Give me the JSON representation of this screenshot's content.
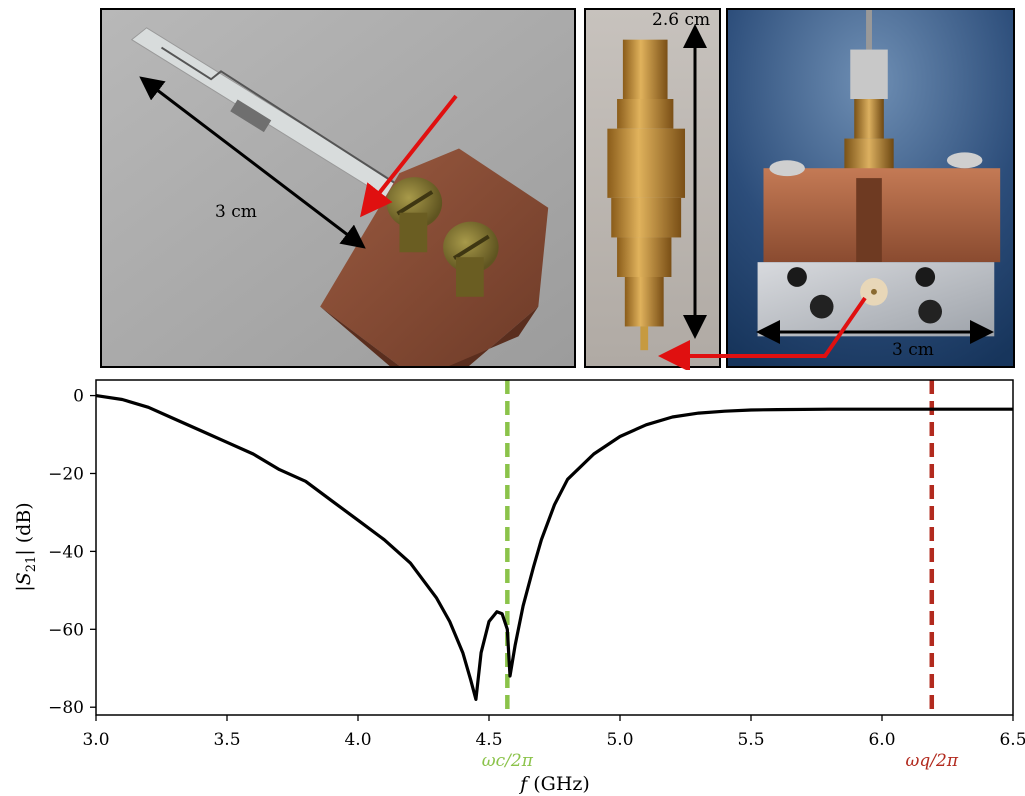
{
  "photos": {
    "left": {
      "dimension_label": "3 cm"
    },
    "middle": {
      "dimension_label": "2.6 cm"
    },
    "right": {
      "dimension_label": "3 cm"
    }
  },
  "chart_data": {
    "type": "line",
    "xlabel": "f (GHz)",
    "ylabel": "|S21| (dB)",
    "xlim": [
      3.0,
      6.5
    ],
    "ylim": [
      -82,
      4
    ],
    "xticks": [
      3.0,
      3.5,
      4.0,
      4.5,
      5.0,
      5.5,
      6.0,
      6.5
    ],
    "yticks": [
      0,
      -20,
      -40,
      -60,
      -80
    ],
    "grid": false,
    "series": [
      {
        "color": "#000000",
        "x": [
          3.0,
          3.1,
          3.2,
          3.3,
          3.4,
          3.5,
          3.6,
          3.7,
          3.8,
          3.9,
          4.0,
          4.1,
          4.2,
          4.3,
          4.35,
          4.4,
          4.43,
          4.45,
          4.47,
          4.5,
          4.53,
          4.55,
          4.57,
          4.58,
          4.6,
          4.63,
          4.67,
          4.7,
          4.75,
          4.8,
          4.9,
          5.0,
          5.1,
          5.2,
          5.3,
          5.4,
          5.5,
          5.6,
          5.8,
          6.0,
          6.2,
          6.5
        ],
        "y": [
          0,
          -1,
          -3,
          -6,
          -9,
          -12,
          -15,
          -19,
          -22,
          -27,
          -32,
          -37,
          -43,
          -52,
          -58,
          -66,
          -73,
          -78,
          -66,
          -58,
          -55.5,
          -56,
          -60,
          -72,
          -64,
          -54,
          -44,
          -37,
          -28,
          -21.5,
          -15,
          -10.5,
          -7.5,
          -5.5,
          -4.5,
          -4.0,
          -3.7,
          -3.6,
          -3.5,
          -3.5,
          -3.5,
          -3.5
        ]
      }
    ],
    "vlines": [
      {
        "x": 4.57,
        "color": "#8bc34a",
        "label": "ωc/2π"
      },
      {
        "x": 6.19,
        "color": "#b22a1e",
        "label": "ωq/2π"
      }
    ]
  }
}
